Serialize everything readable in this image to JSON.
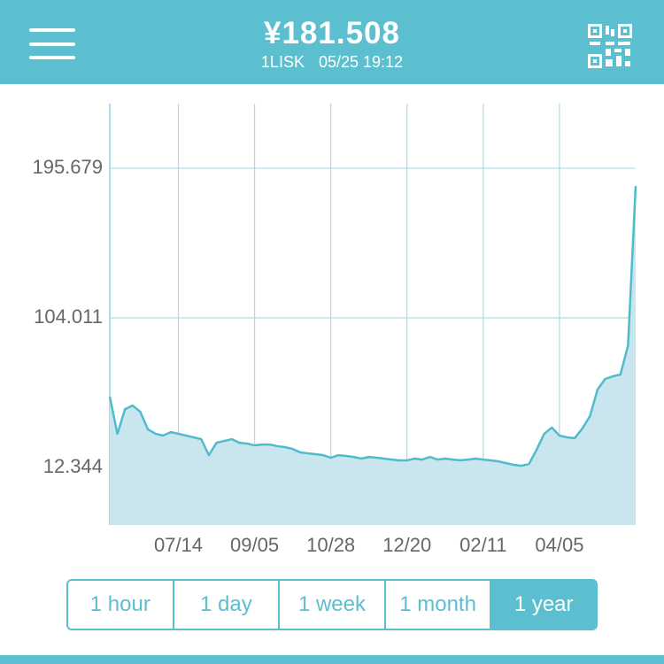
{
  "header": {
    "price": "¥181.508",
    "asset": "1LISK",
    "timestamp": "05/25 19:12"
  },
  "chart_data": {
    "type": "area",
    "categories": [
      null,
      null,
      null,
      null,
      null,
      null,
      null,
      null,
      null,
      "07/14",
      null,
      null,
      null,
      null,
      null,
      null,
      null,
      null,
      null,
      "09/05",
      null,
      null,
      null,
      null,
      null,
      null,
      null,
      null,
      null,
      "10/28",
      null,
      null,
      null,
      null,
      null,
      null,
      null,
      null,
      null,
      "12/20",
      null,
      null,
      null,
      null,
      null,
      null,
      null,
      null,
      null,
      "02/11",
      null,
      null,
      null,
      null,
      null,
      null,
      null,
      null,
      null,
      "04/05",
      null,
      null,
      null,
      null,
      null,
      null,
      null,
      null,
      null,
      null
    ],
    "values": [
      55.7,
      33,
      48.1,
      50.3,
      46.5,
      35.7,
      33,
      31.9,
      34,
      33,
      31.9,
      30.8,
      29.7,
      19.9,
      27.5,
      28.6,
      29.7,
      27.5,
      27,
      25.9,
      26.4,
      26.4,
      25.4,
      24.8,
      23.7,
      21.6,
      21,
      20.5,
      19.9,
      18.3,
      19.9,
      19.4,
      18.8,
      17.8,
      18.8,
      18.3,
      17.8,
      17.2,
      16.7,
      16.7,
      17.8,
      17.2,
      18.8,
      17.2,
      17.8,
      17.2,
      16.7,
      17.2,
      17.8,
      17.2,
      16.7,
      16.1,
      15,
      14,
      13.4,
      14.5,
      23.2,
      33,
      36.8,
      31.9,
      30.8,
      30.3,
      36.2,
      43.8,
      60.1,
      66.6,
      68.2,
      69.3,
      87.2,
      184.8
    ],
    "color": "#4fbccc",
    "fill": "#c9e6ee",
    "ylim": [
      -22.9,
      235.3
    ],
    "yticks": [
      12.344,
      104.011,
      195.679
    ],
    "grid": true
  },
  "range_buttons": {
    "options": [
      "1 hour",
      "1 day",
      "1 week",
      "1 month",
      "1 year"
    ],
    "selected": 4
  }
}
